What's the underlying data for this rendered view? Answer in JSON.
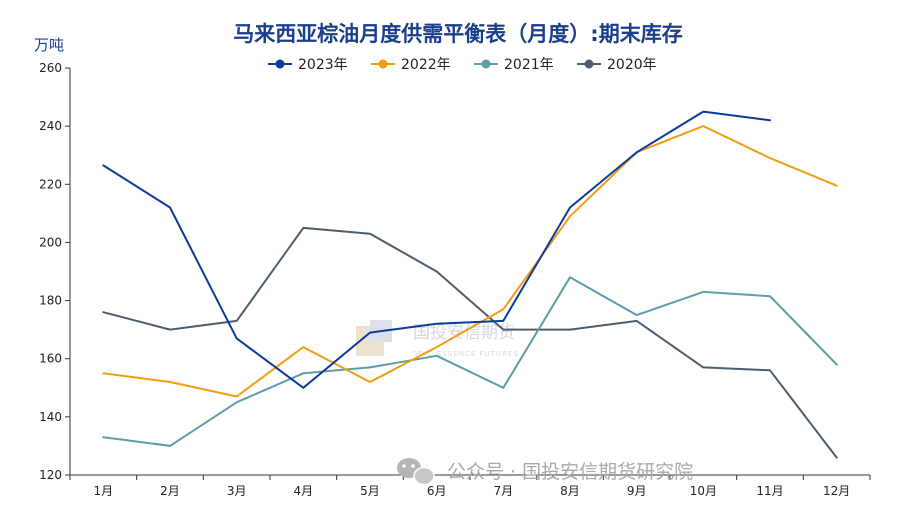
{
  "chart_data": {
    "type": "line",
    "title": "马来西亚棕油月度供需平衡表（月度）:期末库存",
    "ylabel": "万吨",
    "xlabel": "",
    "categories": [
      "1月",
      "2月",
      "3月",
      "4月",
      "5月",
      "6月",
      "7月",
      "8月",
      "9月",
      "10月",
      "11月",
      "12月"
    ],
    "ylim": [
      120,
      260
    ],
    "yticks": [
      120,
      140,
      160,
      180,
      200,
      220,
      240,
      260
    ],
    "grid": false,
    "legend_position": "top-center",
    "series": [
      {
        "name": "2023年",
        "color": "#0a3a9c",
        "values": [
          226.5,
          212,
          167,
          150,
          169,
          172,
          173,
          212,
          231,
          245,
          242,
          null
        ]
      },
      {
        "name": "2022年",
        "color": "#f39c12",
        "values": [
          155,
          152,
          147,
          164,
          152,
          164,
          177,
          209,
          231,
          240,
          229,
          219.5
        ]
      },
      {
        "name": "2021年",
        "color": "#5b9ea6",
        "values": [
          133,
          130,
          145,
          155,
          157,
          161,
          150,
          188,
          175,
          183,
          181.5,
          158
        ]
      },
      {
        "name": "2020年",
        "color": "#4e5d6e",
        "values": [
          176,
          170,
          173,
          205,
          203,
          190,
          170,
          170,
          173,
          157,
          156,
          126
        ]
      }
    ]
  },
  "watermark": {
    "center_cn": "国投安信期货",
    "center_en": "SDIC ESSENCE FUTURES",
    "bottom": "公众号 · 国投安信期货研究院"
  }
}
